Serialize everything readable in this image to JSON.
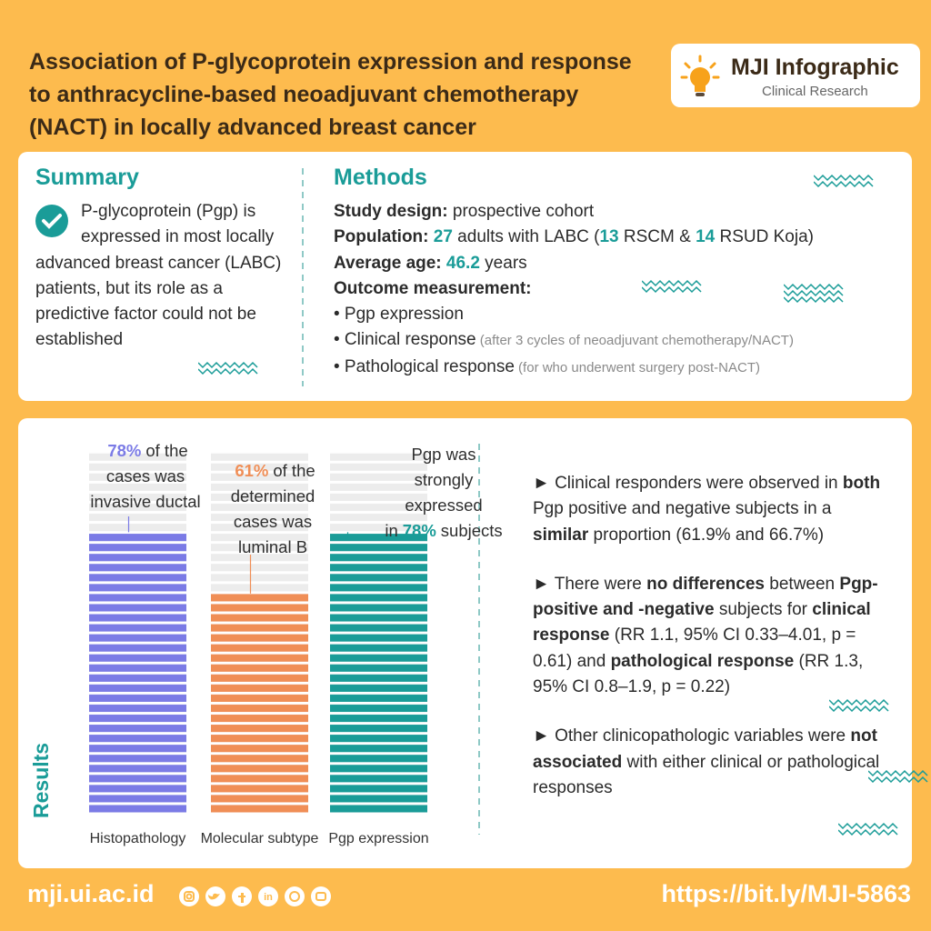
{
  "header": {
    "title": "Association of P-glycoprotein expression and response to anthracycline-based neoadjuvant chemotherapy (NACT) in locally advanced breast cancer",
    "brand": "MJI Infographic",
    "brand_sub": "Clinical Research"
  },
  "summary": {
    "heading": "Summary",
    "text": "P-glycoprotein (Pgp) is expressed in most locally advanced breast cancer (LABC) patients, but its role as a predictive factor could not be established"
  },
  "methods": {
    "heading": "Methods",
    "lines": [
      [
        {
          "text": "Study design:",
          "style": "bold"
        },
        {
          "text": " prospective cohort"
        }
      ],
      [
        {
          "text": "Population:",
          "style": "bold"
        },
        {
          "text": " "
        },
        {
          "text": 27,
          "style": "num"
        },
        {
          "text": " adults with LABC ("
        },
        {
          "text": 13,
          "style": "num"
        },
        {
          "text": " RSCM & "
        },
        {
          "text": 14,
          "style": "num"
        },
        {
          "text": " RSUD Koja)"
        }
      ],
      [
        {
          "text": "Average age: ",
          "style": "bold"
        },
        {
          "text": 46.2,
          "style": "num"
        },
        {
          "text": " years"
        }
      ],
      [
        {
          "text": "Outcome measurement:",
          "style": "bold"
        }
      ],
      [
        {
          "text": "• Pgp expression"
        }
      ],
      [
        {
          "text": "• Clinical response"
        },
        {
          "text": " (after 3 cycles of neoadjuvant chemotherapy/NACT)",
          "style": "note"
        }
      ],
      [
        {
          "text": "• Pathological response"
        },
        {
          "text": " (for who underwent surgery post-NACT)",
          "style": "note"
        }
      ]
    ]
  },
  "results": {
    "label": "Results",
    "columns": [
      {
        "name": "Histopathology",
        "value": 78,
        "value_label": "78%",
        "caption": "of the cases was invasive ductal",
        "color": "#7b7be6"
      },
      {
        "name": "Molecular subtype",
        "value": 61,
        "value_label": "61%",
        "caption": "of the determined cases was luminal B",
        "color": "#f08e56"
      },
      {
        "name": "Pgp expression",
        "caption_before": "Pgp was strongly expressed in",
        "value": 78,
        "value_label": "78%",
        "caption": "subjects",
        "color": "#1a9c98"
      }
    ],
    "findings": [
      [
        {
          "text": "► Clinical responders were observed in "
        },
        {
          "text": "both",
          "style": "bold"
        },
        {
          "text": " Pgp positive and negative subjects in a "
        },
        {
          "text": "similar",
          "style": "bold"
        },
        {
          "text": " proportion (61.9% and 66.7%)"
        }
      ],
      [
        {
          "text": "► There were "
        },
        {
          "text": "no differences",
          "style": "bold"
        },
        {
          "text": " between "
        },
        {
          "text": "Pgp-positive and -negative",
          "style": "bold"
        },
        {
          "text": " subjects for "
        },
        {
          "text": "clinical response",
          "style": "bold"
        },
        {
          "text": " (RR 1.1, 95% CI 0.33–4.01, p = 0.61) and "
        },
        {
          "text": "pathological response",
          "style": "bold"
        },
        {
          "text": " (RR 1.3, 95% CI 0.8–1.9, p = 0.22)"
        }
      ],
      [
        {
          "text": "► Other clinicopathologic variables were "
        },
        {
          "text": "not associated",
          "style": "bold"
        },
        {
          "text": " with either clinical or pathological responses"
        }
      ]
    ]
  },
  "footer": {
    "site": "mji.ui.ac.id",
    "url": "https://bit.ly/MJI-5863"
  }
}
